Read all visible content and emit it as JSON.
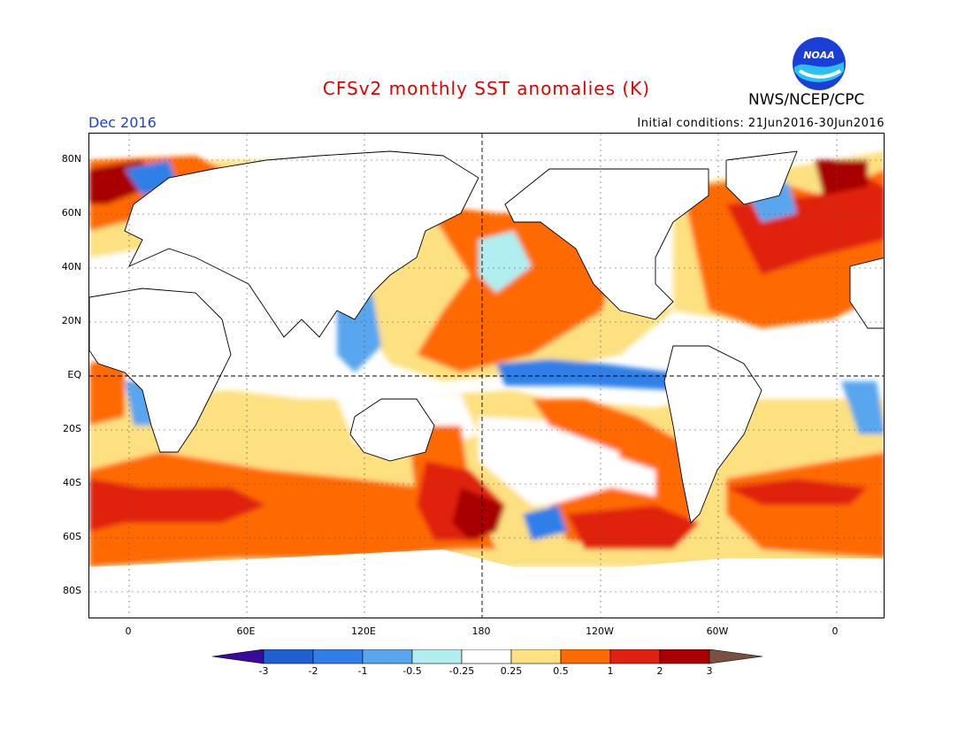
{
  "header": {
    "title": "CFSv2 monthly SST anomalies (K)",
    "agency": "NWS/NCEP/CPC",
    "period": "Dec 2016",
    "initial_conditions": "Initial conditions: 21Jun2016-30Jun2016",
    "logo_text": "NOAA"
  },
  "axes": {
    "lat_labels": [
      "80N",
      "60N",
      "40N",
      "20N",
      "EQ",
      "20S",
      "40S",
      "60S",
      "80S"
    ],
    "lon_labels": [
      "0",
      "60E",
      "120E",
      "180",
      "120W",
      "60W",
      "0"
    ]
  },
  "colorbar": {
    "labels": [
      "-3",
      "-2",
      "-1",
      "-0.5",
      "-0.25",
      "0.25",
      "0.5",
      "1",
      "2",
      "3"
    ],
    "colors": [
      "#3a0a9e",
      "#1f5fd0",
      "#2e80e8",
      "#58a6ee",
      "#b0eef0",
      "#ffffff",
      "#fde080",
      "#ff6a00",
      "#e02010",
      "#a80000",
      "#7a5040"
    ]
  }
}
